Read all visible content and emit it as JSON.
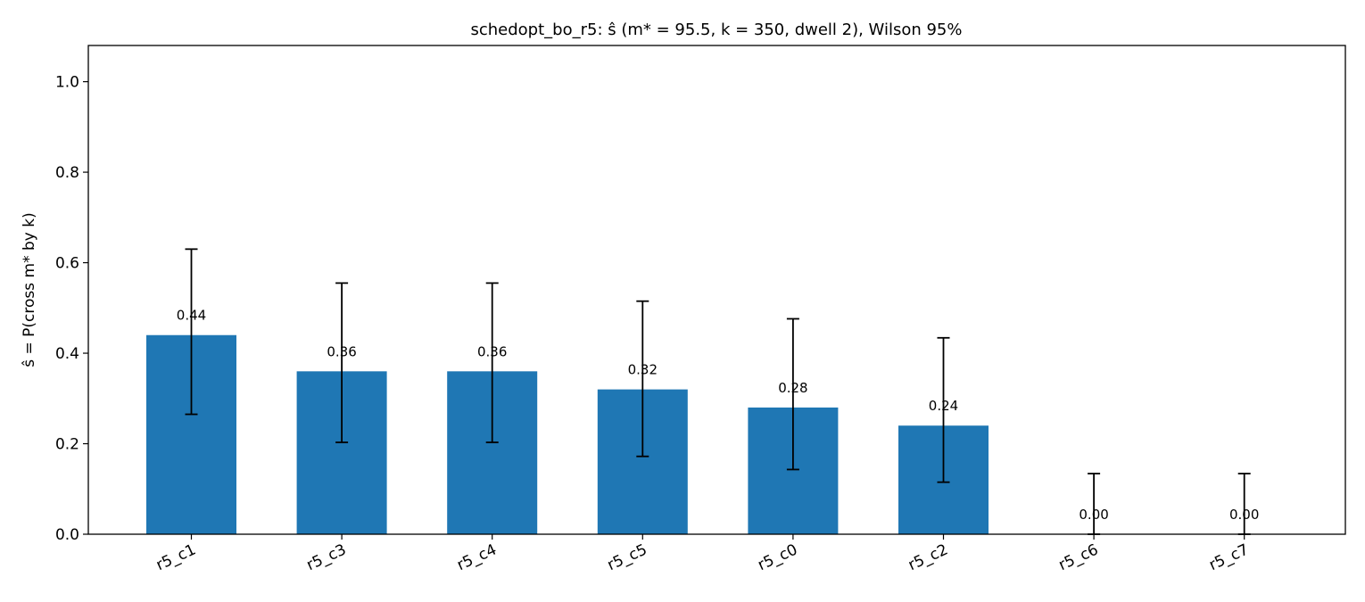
{
  "chart_data": {
    "type": "bar",
    "title": "schedopt_bo_r5: ŝ (m* = 95.5, k = 350, dwell 2), Wilson 95%",
    "xlabel": "",
    "ylabel": "ŝ = P(cross m* by k)",
    "categories": [
      "r5_c1",
      "r5_c3",
      "r5_c4",
      "r5_c5",
      "r5_c0",
      "r5_c2",
      "r5_c6",
      "r5_c7"
    ],
    "values": [
      0.44,
      0.36,
      0.36,
      0.32,
      0.28,
      0.24,
      0.0,
      0.0
    ],
    "value_labels": [
      "0.44",
      "0.36",
      "0.36",
      "0.32",
      "0.28",
      "0.24",
      "0.00",
      "0.00"
    ],
    "error_low": [
      0.265,
      0.203,
      0.203,
      0.172,
      0.143,
      0.115,
      0.0,
      0.0
    ],
    "error_high": [
      0.63,
      0.555,
      0.555,
      0.515,
      0.476,
      0.434,
      0.134,
      0.134
    ],
    "ylim": [
      0,
      1.08
    ],
    "yticks": [
      0.0,
      0.2,
      0.4,
      0.6,
      0.8,
      1.0
    ],
    "ytick_labels": [
      "0.0",
      "0.2",
      "0.4",
      "0.6",
      "0.8",
      "1.0"
    ],
    "bar_color": "#1f77b4",
    "error_color": "#000000",
    "grid": false,
    "legend": "none"
  }
}
